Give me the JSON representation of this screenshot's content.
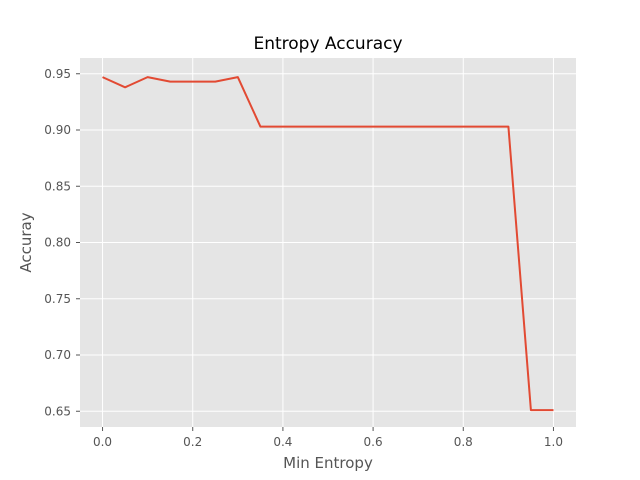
{
  "chart_data": {
    "type": "line",
    "title": "Entropy Accuracy",
    "xlabel": "Min Entropy",
    "ylabel": "Accuray",
    "xlim": [
      -0.05,
      1.05
    ],
    "ylim": [
      0.636,
      0.964
    ],
    "xticks": [
      0.0,
      0.2,
      0.4,
      0.6,
      0.8,
      1.0
    ],
    "xtick_labels": [
      "0.0",
      "0.2",
      "0.4",
      "0.6",
      "0.8",
      "1.0"
    ],
    "yticks": [
      0.65,
      0.7,
      0.75,
      0.8,
      0.85,
      0.9,
      0.95
    ],
    "ytick_labels": [
      "0.65",
      "0.70",
      "0.75",
      "0.80",
      "0.85",
      "0.90",
      "0.95"
    ],
    "grid": true,
    "style": "ggplot",
    "series": [
      {
        "color": "#E24A33",
        "x": [
          0.0,
          0.05,
          0.1,
          0.15,
          0.2,
          0.25,
          0.3,
          0.35,
          0.4,
          0.45,
          0.5,
          0.55,
          0.6,
          0.65,
          0.7,
          0.75,
          0.8,
          0.85,
          0.9,
          0.95,
          1.0
        ],
        "y": [
          0.947,
          0.938,
          0.947,
          0.943,
          0.943,
          0.943,
          0.947,
          0.903,
          0.903,
          0.903,
          0.903,
          0.903,
          0.903,
          0.903,
          0.903,
          0.903,
          0.903,
          0.903,
          0.903,
          0.651,
          0.651
        ]
      }
    ]
  }
}
